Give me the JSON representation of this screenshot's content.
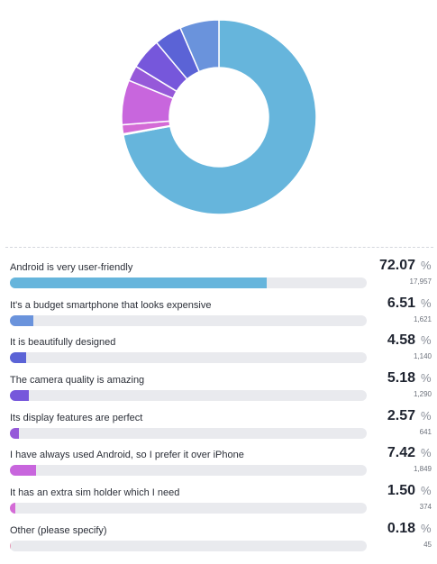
{
  "chart_data": {
    "type": "pie",
    "variant": "donut",
    "percent_symbol": "%",
    "series": [
      {
        "name": "Android is very user-friendly",
        "value": 72.07,
        "count": 17957,
        "count_text": "17,957",
        "color": "#66b5dc"
      },
      {
        "name": "It's a budget smartphone that looks expensive",
        "value": 6.51,
        "count": 1621,
        "count_text": "1,621",
        "color": "#6a93dc"
      },
      {
        "name": "It is beautifully designed",
        "value": 4.58,
        "count": 1140,
        "count_text": "1,140",
        "color": "#5b63d6"
      },
      {
        "name": "The camera quality is amazing",
        "value": 5.18,
        "count": 1290,
        "count_text": "1,290",
        "color": "#7657db"
      },
      {
        "name": "Its display features are perfect",
        "value": 2.57,
        "count": 641,
        "count_text": "641",
        "color": "#9659d9"
      },
      {
        "name": "I have always used Android, so I prefer it over iPhone",
        "value": 7.42,
        "count": 1849,
        "count_text": "1,849",
        "color": "#c866dd"
      },
      {
        "name": "It has an extra sim holder which I need",
        "value": 1.5,
        "count": 374,
        "count_text": "374",
        "color": "#d46bd6"
      },
      {
        "name": "Other (please specify)",
        "value": 0.18,
        "count": 45,
        "count_text": "45",
        "color": "#e59ab7"
      }
    ]
  }
}
